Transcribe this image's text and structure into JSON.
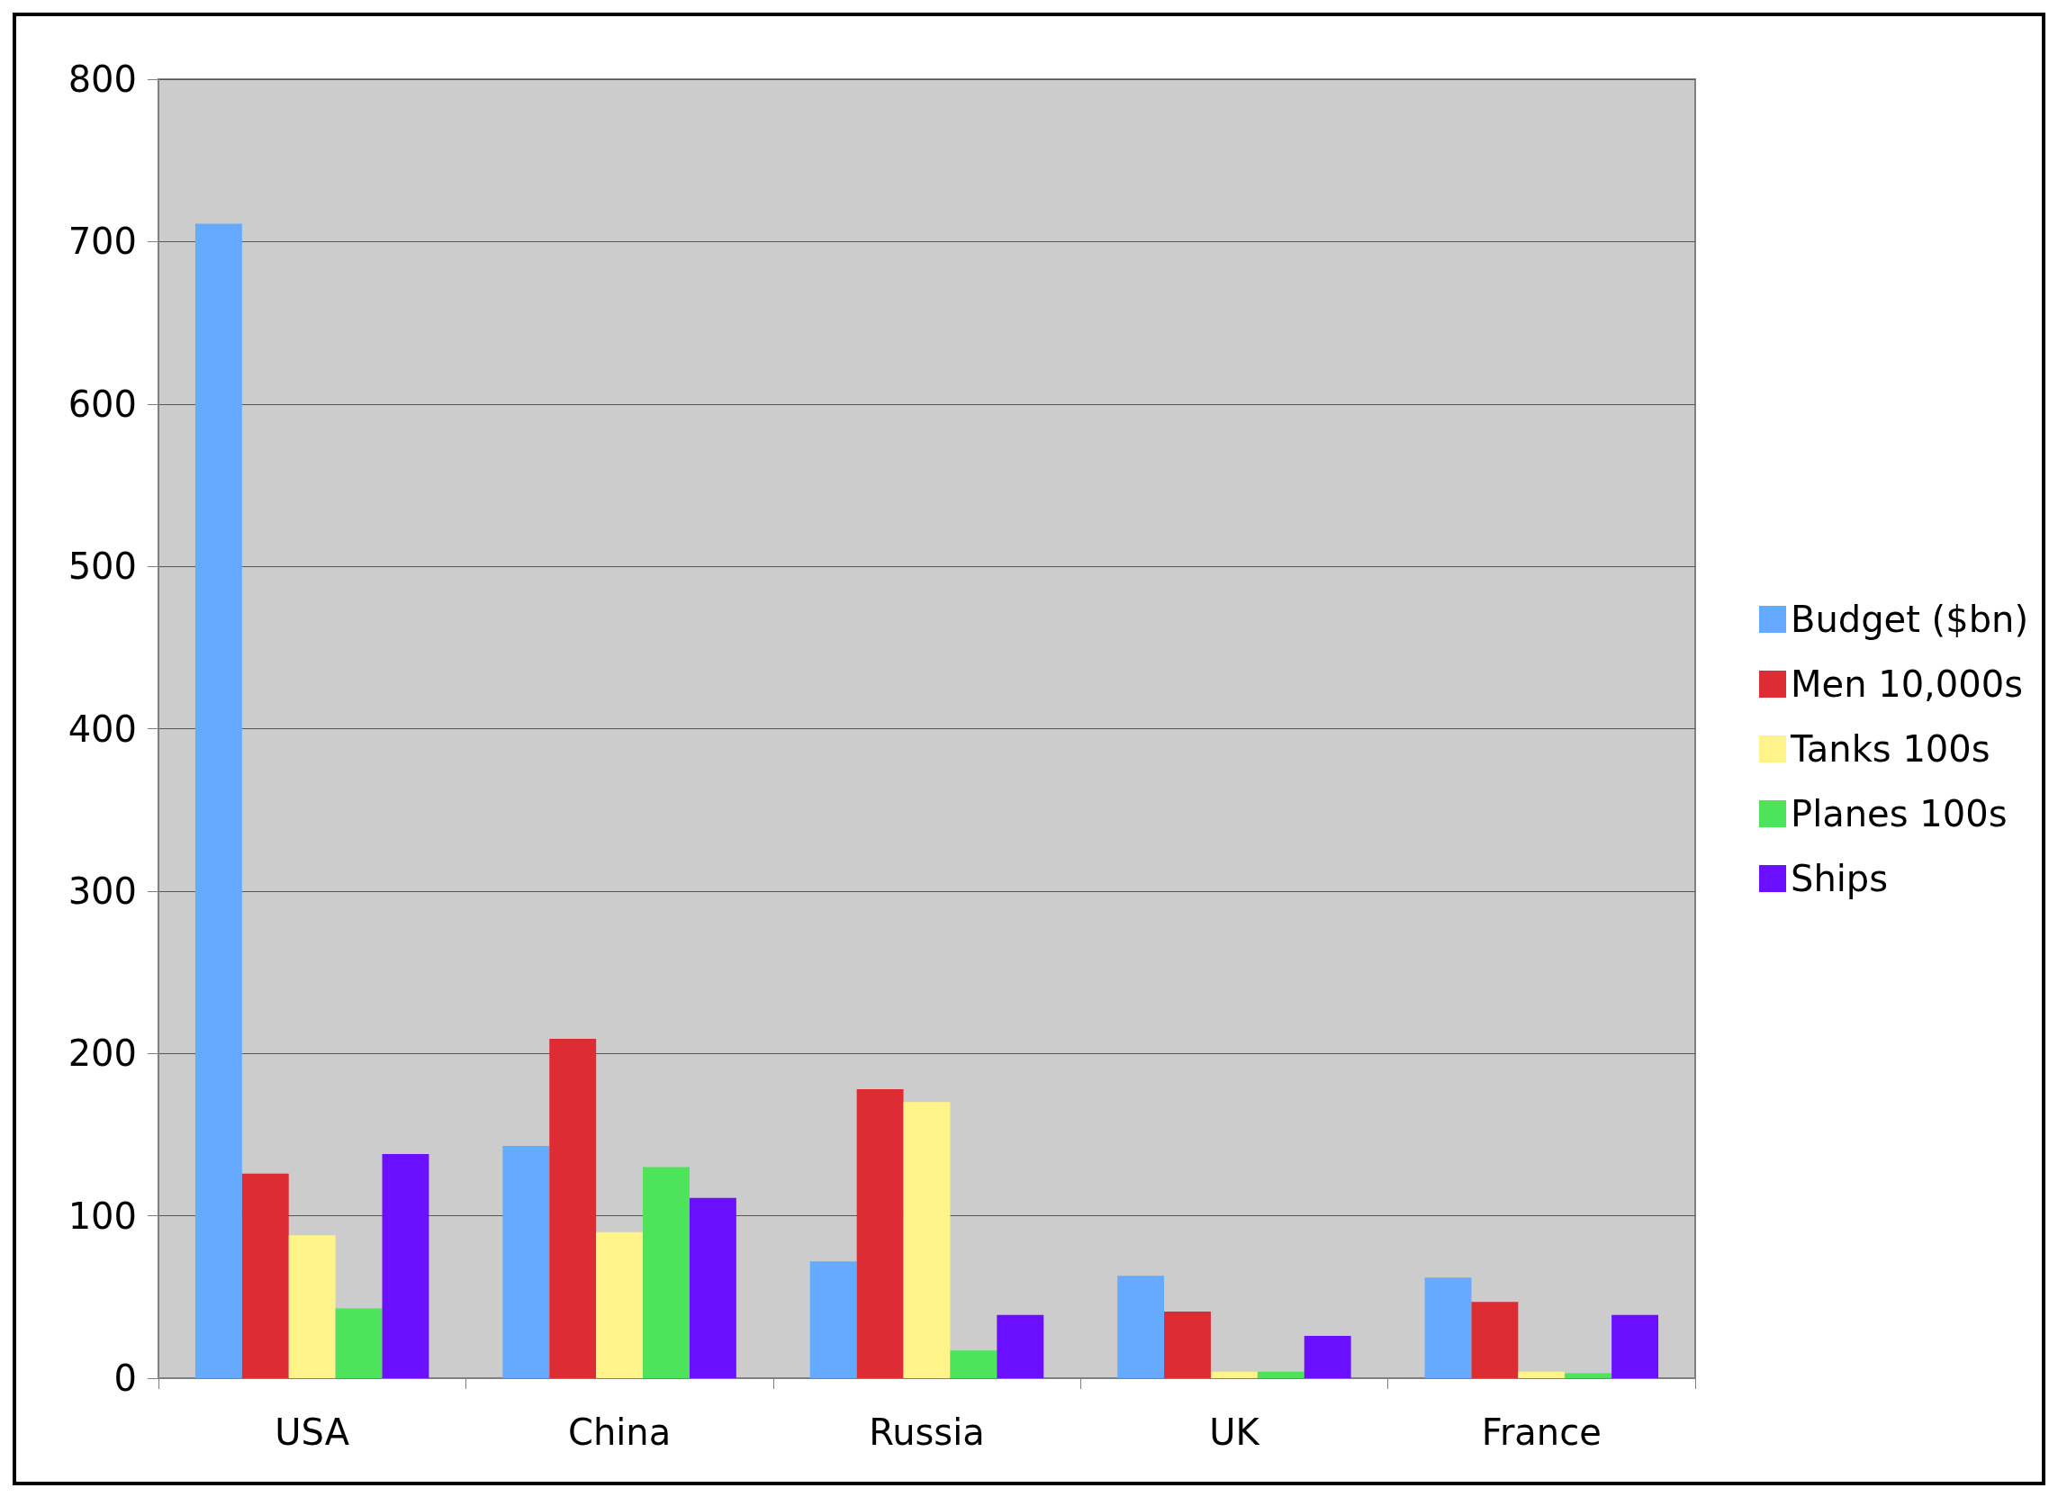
{
  "chart_data": {
    "type": "bar",
    "categories": [
      "USA",
      "China",
      "Russia",
      "UK",
      "France"
    ],
    "series": [
      {
        "name": "Budget ($bn)",
        "color": "#66aaff",
        "values": [
          711,
          143,
          72,
          63,
          62
        ]
      },
      {
        "name": "Men 10,000s",
        "color": "#dd2c33",
        "values": [
          126,
          209,
          178,
          41,
          47
        ]
      },
      {
        "name": "Tanks 100s",
        "color": "#fff38a",
        "values": [
          88,
          90,
          170,
          4,
          4
        ]
      },
      {
        "name": "Planes 100s",
        "color": "#4de35a",
        "values": [
          43,
          130,
          17,
          4,
          3
        ]
      },
      {
        "name": "Ships",
        "color": "#6a0fff",
        "values": [
          138,
          111,
          39,
          26,
          39
        ]
      }
    ],
    "ylim": [
      0,
      800
    ],
    "yticks": [
      0,
      100,
      200,
      300,
      400,
      500,
      600,
      700,
      800
    ],
    "grid": "y",
    "legend": "right"
  }
}
